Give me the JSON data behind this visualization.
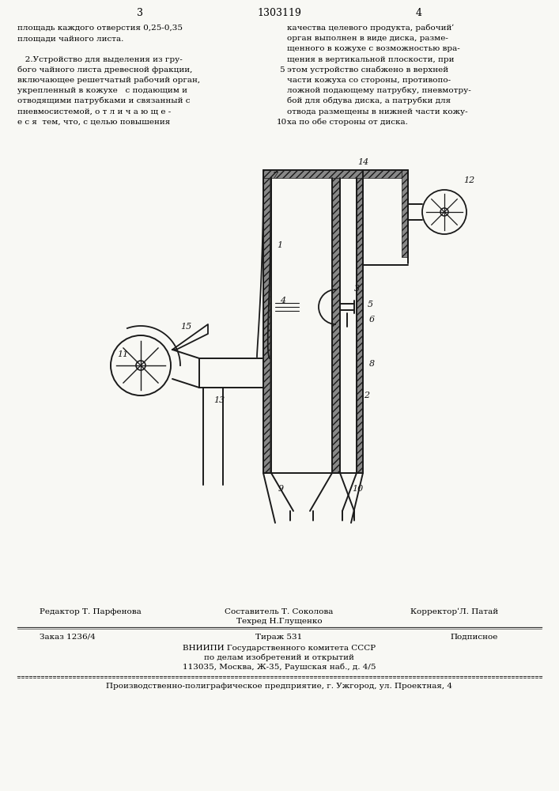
{
  "bg_color": "#f8f8f4",
  "page_num_left": "3",
  "page_num_center": "1303119",
  "page_num_right": "4",
  "col_left_text": [
    "площадь каждого отверстия 0,25-0,35",
    "площади чайного листа.",
    "",
    "   2.Устройство для выделения из гру-",
    "бого чайного листа древесной фракции,",
    "включающее решетчатый рабочий орган,",
    "укрепленный в кожухе   с подающим и",
    "отводящими патрубками и связанный с",
    "пневмосистемой, о т л и ч а ю щ е -",
    "е с я  тем, что, с целью повышения"
  ],
  "col_right_text": [
    "качества целевого продукта, рабочийʹ",
    "орган выполнен в виде диска, разме-",
    "щенного в кожухе с возможностью вра-",
    "щения в вертикальной плоскости, при",
    "этом устройство снабжено в верхней",
    "части кожуха со стороны, противопо-",
    "ложной подающему патрубку, пневмотру-",
    "бой для обдува диска, а патрубки для",
    "отвода размещены в нижней части кожу-",
    "ха по обе стороны от диска."
  ],
  "line_num_5": "5",
  "line_num_10": "10",
  "footer_line1_left": "Редактор Т. Парфенова",
  "footer_techred_label": "Составитель Т. Соколова",
  "footer_techred_value": "Техред Н.Глущенко",
  "footer_line1_right": "КорректорʹЛ. Патай",
  "footer_line2_left": "Заказ 1236/4",
  "footer_line2_center": "Тираж 531",
  "footer_line2_right": "Подписное",
  "footer_line3_center": "ВНИИПИ Государственного комитета СССР",
  "footer_line4_center": "по делам изобретений и открытий",
  "footer_line5_center": "113035, Москва, Ж-35, Раушская наб., д. 4/5",
  "footer_last": "Производственно-полиграфическое предприятие, г. Ужгород, ул. Проектная, 4"
}
